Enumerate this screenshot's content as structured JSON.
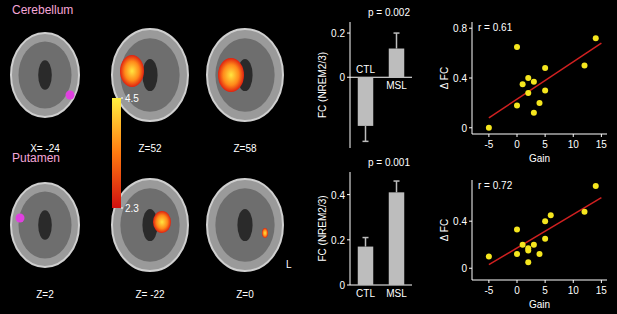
{
  "chart_data": [
    {
      "type": "bar",
      "title": "p = 0.002",
      "y_label": "FC (NREM2/3)",
      "categories": [
        "CTL",
        "MSL"
      ],
      "values": [
        -0.22,
        0.13
      ],
      "errors": [
        0.07,
        0.07
      ],
      "color": "#bdbdbd",
      "ylim": [
        -0.32,
        0.25
      ],
      "yticks": [
        0,
        0.2
      ]
    },
    {
      "type": "scatter",
      "annotation": "r = 0.61",
      "x_label": "Gain",
      "y_label": "Δ FC",
      "xlim": [
        -8,
        16
      ],
      "xticks": [
        -5,
        0,
        5,
        10,
        15
      ],
      "ylim": [
        -0.05,
        0.85
      ],
      "yticks": [
        0,
        0.4,
        0.8
      ],
      "series": [
        {
          "type": "scatter",
          "color": "#f5e61e",
          "marker": "circle",
          "x": [
            -5,
            0,
            0,
            1,
            2,
            2,
            3,
            3,
            4,
            5,
            5,
            12,
            14
          ],
          "values": [
            0.0,
            0.65,
            0.18,
            0.35,
            0.4,
            0.28,
            0.37,
            0.12,
            0.2,
            0.48,
            0.3,
            0.5,
            0.72
          ]
        },
        {
          "type": "line",
          "color": "#d02020",
          "line_style": "solid",
          "x": [
            -5,
            15
          ],
          "values": [
            0.08,
            0.68
          ]
        }
      ]
    },
    {
      "type": "bar",
      "title": "p = 0.001",
      "y_label": "FC (NREM2/3)",
      "categories": [
        "CTL",
        "MSL"
      ],
      "values": [
        0.17,
        0.41
      ],
      "errors": [
        0.04,
        0.05
      ],
      "color": "#bdbdbd",
      "ylim": [
        0,
        0.5
      ],
      "yticks": [
        0,
        0.2,
        0.4
      ]
    },
    {
      "type": "scatter",
      "annotation": "r = 0.72",
      "x_label": "Gain",
      "y_label": "Δ FC",
      "xlim": [
        -8,
        16
      ],
      "xticks": [
        -5,
        0,
        5,
        10,
        15
      ],
      "ylim": [
        -0.1,
        0.75
      ],
      "yticks": [
        0,
        0.4
      ],
      "series": [
        {
          "type": "scatter",
          "color": "#f5e61e",
          "marker": "circle",
          "x": [
            -5,
            0,
            0,
            1,
            2,
            2,
            2,
            3,
            4,
            5,
            5,
            6,
            12,
            14
          ],
          "values": [
            0.1,
            0.33,
            0.12,
            0.2,
            0.17,
            0.15,
            0.05,
            0.2,
            0.12,
            0.25,
            0.4,
            0.45,
            0.48,
            0.7
          ]
        },
        {
          "type": "line",
          "color": "#d02020",
          "line_style": "solid",
          "x": [
            -5,
            15
          ],
          "values": [
            0.03,
            0.6
          ]
        }
      ]
    }
  ],
  "brain_maps": {
    "regions": [
      {
        "label": "Cerebellum",
        "slice_labels": [
          "X= -24",
          "Z=52",
          "Z=58"
        ]
      },
      {
        "label": "Putamen",
        "slice_labels": [
          "Z=2",
          "Z= -22",
          "Z=0"
        ]
      }
    ],
    "colorbar": {
      "range": [
        2.3,
        4.5
      ],
      "ticks": [
        2.3,
        4.5
      ]
    },
    "side_label": "L"
  }
}
